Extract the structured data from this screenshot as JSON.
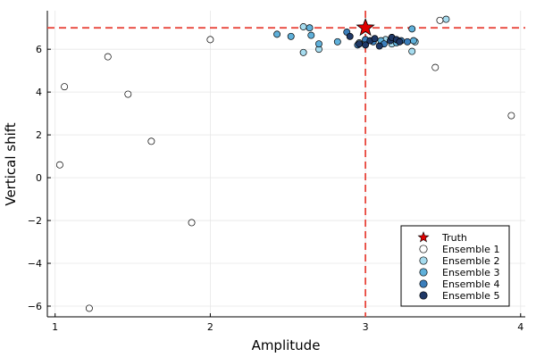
{
  "chart_data": {
    "type": "scatter",
    "xlabel": "Amplitude",
    "ylabel": "Vertical shift",
    "xlim": [
      0.95,
      4.03
    ],
    "ylim": [
      -6.5,
      7.8
    ],
    "x_ticks": [
      1,
      2,
      3,
      4
    ],
    "y_ticks": [
      -6,
      -4,
      -2,
      0,
      2,
      4,
      6
    ],
    "x_tick_labels": [
      "1",
      "2",
      "3",
      "4"
    ],
    "y_tick_labels": [
      "−6",
      "−4",
      "−2",
      "0",
      "2",
      "4",
      "6"
    ],
    "grid": true,
    "legend_position": "bottom-right",
    "truth": {
      "name": "Truth",
      "x": 3.0,
      "y": 7.0,
      "color": "#e00000",
      "marker": "star",
      "reference_line_color": "#e8473d"
    },
    "series": [
      {
        "name": "Ensemble 1",
        "color": "#ffffff",
        "points": [
          [
            1.03,
            0.6
          ],
          [
            1.06,
            4.25
          ],
          [
            1.22,
            -6.1
          ],
          [
            1.34,
            5.65
          ],
          [
            1.47,
            3.9
          ],
          [
            1.62,
            1.7
          ],
          [
            1.88,
            -2.1
          ],
          [
            2.0,
            6.45
          ],
          [
            3.45,
            5.15
          ],
          [
            3.48,
            7.35
          ],
          [
            3.94,
            2.9
          ]
        ]
      },
      {
        "name": "Ensemble 2",
        "color": "#a6dcef",
        "points": [
          [
            2.6,
            5.85
          ],
          [
            2.6,
            7.05
          ],
          [
            2.7,
            6.0
          ],
          [
            3.3,
            5.9
          ],
          [
            3.52,
            7.4
          ],
          [
            3.13,
            6.45
          ],
          [
            2.96,
            6.3
          ],
          [
            3.32,
            6.35
          ],
          [
            3.17,
            6.25
          ]
        ]
      },
      {
        "name": "Ensemble 3",
        "color": "#5fb0da",
        "points": [
          [
            2.43,
            6.7
          ],
          [
            2.52,
            6.6
          ],
          [
            2.64,
            7.0
          ],
          [
            2.65,
            6.65
          ],
          [
            2.7,
            6.25
          ],
          [
            2.82,
            6.35
          ],
          [
            3.1,
            6.4
          ],
          [
            3.3,
            6.95
          ],
          [
            3.31,
            6.4
          ],
          [
            3.2,
            6.3
          ]
        ]
      },
      {
        "name": "Ensemble 4",
        "color": "#3b7ebb",
        "points": [
          [
            2.88,
            6.8
          ],
          [
            2.95,
            6.2
          ],
          [
            3.0,
            6.45
          ],
          [
            3.05,
            6.35
          ],
          [
            3.12,
            6.25
          ],
          [
            3.17,
            6.55
          ],
          [
            3.23,
            6.4
          ],
          [
            3.27,
            6.35
          ]
        ]
      },
      {
        "name": "Ensemble 5",
        "color": "#1f3866",
        "points": [
          [
            2.9,
            6.6
          ],
          [
            2.96,
            6.25
          ],
          [
            3.0,
            6.2
          ],
          [
            3.03,
            6.4
          ],
          [
            3.06,
            6.5
          ],
          [
            3.09,
            6.15
          ],
          [
            3.16,
            6.4
          ],
          [
            3.17,
            6.55
          ],
          [
            3.2,
            6.45
          ],
          [
            3.22,
            6.35
          ]
        ]
      }
    ]
  }
}
